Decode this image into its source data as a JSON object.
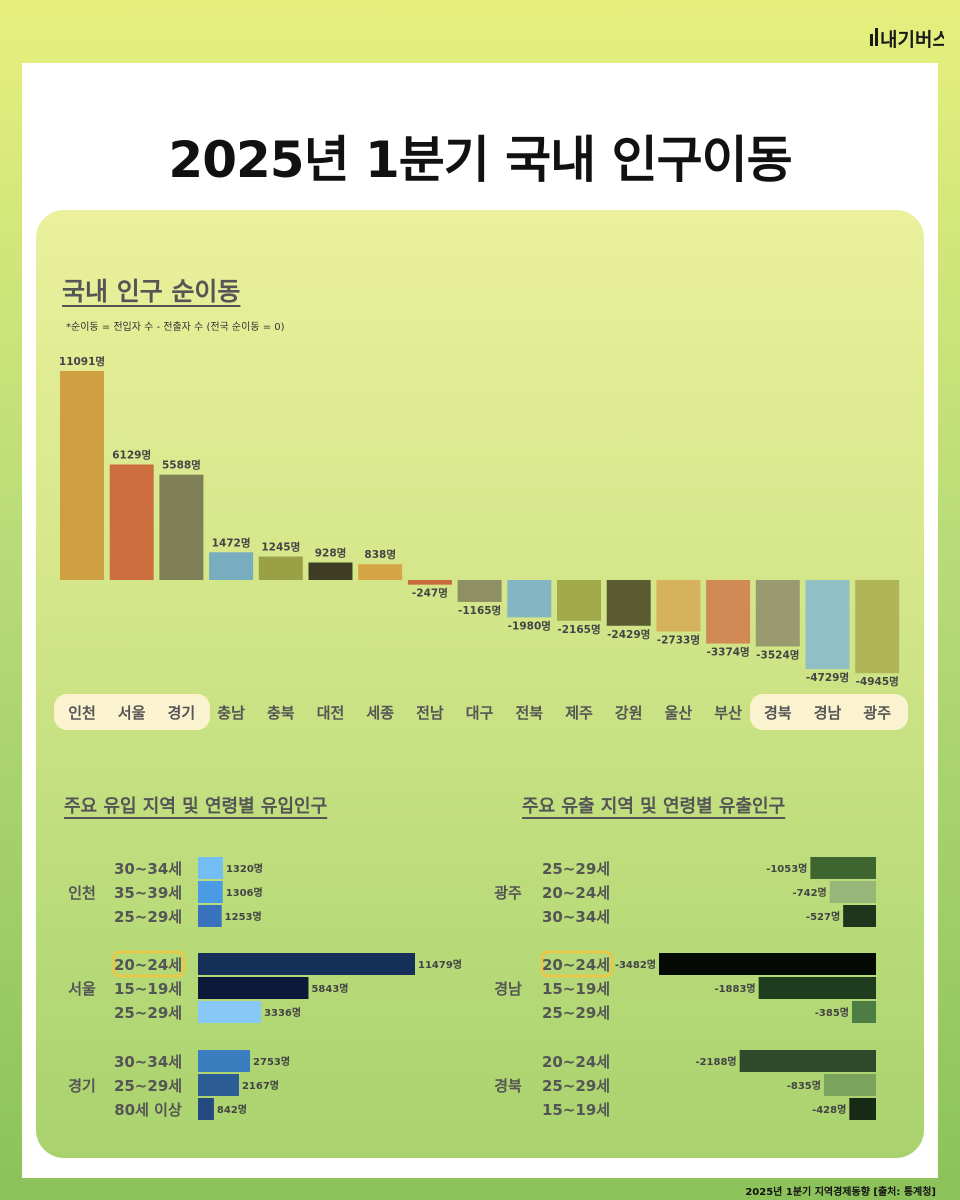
{
  "title": "2025년 1분기 국내 인구이동",
  "logo_text": "내기버스",
  "footer": "2025년 1분기 지역경제동향 [출처: 통계청]",
  "net_section": {
    "title": "국내 인구 순이동",
    "note": "*순이동 = 전입자 수 - 전출자 수 (전국 순이동 = 0)"
  },
  "inflow_section": {
    "title": "주요 유입 지역 및 연령별 유입인구"
  },
  "outflow_section": {
    "title": "주요 유출 지역 및 연령별 유출인구"
  },
  "chart_data": [
    {
      "type": "bar",
      "title": "국내 인구 순이동",
      "unit": "명",
      "categories": [
        "인천",
        "서울",
        "경기",
        "충남",
        "충북",
        "대전",
        "세종",
        "전남",
        "대구",
        "전북",
        "제주",
        "강원",
        "울산",
        "부산",
        "경북",
        "경남",
        "광주"
      ],
      "values": [
        11091,
        6129,
        5588,
        1472,
        1245,
        928,
        838,
        -247,
        -1165,
        -1980,
        -2165,
        -2429,
        -2733,
        -3374,
        -3524,
        -4729,
        -4945
      ],
      "colors": [
        "#cfa042",
        "#cc6e3d",
        "#7f7f58",
        "#78adc0",
        "#9aa144",
        "#3e3d23",
        "#d6a545",
        "#c86a3c",
        "#8f8f64",
        "#83b5c2",
        "#a1aa4b",
        "#5a5a33",
        "#d6b25d",
        "#d18a55",
        "#9a9a71",
        "#90bfc6",
        "#b0b657"
      ],
      "highlight_groups": [
        [
          "인천",
          "서울",
          "경기"
        ],
        [
          "경북",
          "경남",
          "광주"
        ]
      ]
    },
    {
      "type": "bar",
      "title": "주요 유입 지역 및 연령별 유입인구",
      "orientation": "horizontal",
      "unit": "명",
      "groups": [
        {
          "region": "인천",
          "items": [
            {
              "age": "30~34세",
              "value": 1320,
              "color": "#74bdf2"
            },
            {
              "age": "35~39세",
              "value": 1306,
              "color": "#4a9be3"
            },
            {
              "age": "25~29세",
              "value": 1253,
              "color": "#3a73bd"
            }
          ]
        },
        {
          "region": "서울",
          "items": [
            {
              "age": "20~24세",
              "value": 11479,
              "color": "#143059",
              "highlight": true
            },
            {
              "age": "15~19세",
              "value": 5843,
              "color": "#0a1a38"
            },
            {
              "age": "25~29세",
              "value": 3336,
              "color": "#88c8f6"
            }
          ]
        },
        {
          "region": "경기",
          "items": [
            {
              "age": "30~34세",
              "value": 2753,
              "color": "#3a7ec0"
            },
            {
              "age": "25~29세",
              "value": 2167,
              "color": "#2c5c94"
            },
            {
              "age": "80세 이상",
              "value": 842,
              "color": "#254a82"
            }
          ]
        }
      ]
    },
    {
      "type": "bar",
      "title": "주요 유출 지역 및 연령별 유출인구",
      "orientation": "horizontal",
      "unit": "명",
      "groups": [
        {
          "region": "광주",
          "items": [
            {
              "age": "25~29세",
              "value": -1053,
              "color": "#3e6530"
            },
            {
              "age": "20~24세",
              "value": -742,
              "color": "#96b779"
            },
            {
              "age": "30~34세",
              "value": -527,
              "color": "#1f351c"
            }
          ]
        },
        {
          "region": "경남",
          "items": [
            {
              "age": "20~24세",
              "value": -3482,
              "color": "#060a05",
              "highlight": true
            },
            {
              "age": "15~19세",
              "value": -1883,
              "color": "#1e3d1e"
            },
            {
              "age": "25~29세",
              "value": -385,
              "color": "#4d7d42"
            }
          ]
        },
        {
          "region": "경북",
          "items": [
            {
              "age": "20~24세",
              "value": -2188,
              "color": "#2f4a2a"
            },
            {
              "age": "25~29세",
              "value": -835,
              "color": "#7aa35c"
            },
            {
              "age": "15~19세",
              "value": -428,
              "color": "#172a15"
            }
          ]
        }
      ]
    }
  ]
}
